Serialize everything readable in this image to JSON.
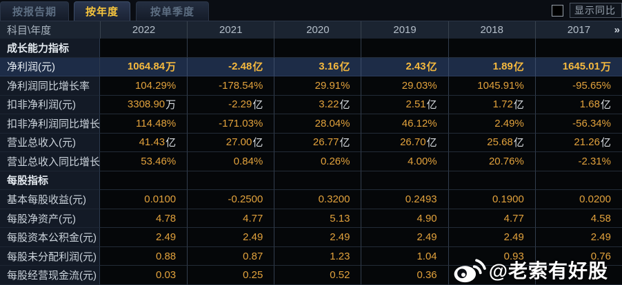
{
  "tabs": [
    {
      "label": "按报告期",
      "active": false
    },
    {
      "label": "按年度",
      "active": true
    },
    {
      "label": "按单季度",
      "active": false
    }
  ],
  "controls": {
    "show_yoy_label": "显示同比",
    "yoy_checkbox_checked": false
  },
  "table": {
    "corner_label": "科目\\年度",
    "more_icon": "»",
    "years": [
      "2022",
      "2021",
      "2020",
      "2019",
      "2018",
      "2017"
    ],
    "rows": [
      {
        "type": "section",
        "label": "成长能力指标",
        "values": [
          "",
          "",
          "",
          "",
          "",
          ""
        ]
      },
      {
        "type": "data",
        "highlight": true,
        "label": "净利润(元)",
        "values": [
          "1064.84万",
          "-2.48亿",
          "3.16亿",
          "2.43亿",
          "1.89亿",
          "1645.01万"
        ]
      },
      {
        "type": "data",
        "label": "净利润同比增长率",
        "values": [
          "104.29%",
          "-178.54%",
          "29.91%",
          "29.03%",
          "1045.91%",
          "-95.65%"
        ]
      },
      {
        "type": "data",
        "label": "扣非净利润(元)",
        "values": [
          "3308.90万",
          "-2.29亿",
          "3.22亿",
          "2.51亿",
          "1.72亿",
          "1.68亿"
        ]
      },
      {
        "type": "data",
        "label": "扣非净利润同比增长率",
        "values": [
          "114.48%",
          "-171.03%",
          "28.04%",
          "46.12%",
          "2.49%",
          "-56.34%"
        ]
      },
      {
        "type": "data",
        "label": "营业总收入(元)",
        "values": [
          "41.43亿",
          "27.00亿",
          "26.77亿",
          "26.70亿",
          "25.68亿",
          "21.26亿"
        ]
      },
      {
        "type": "data",
        "label": "营业总收入同比增长率",
        "values": [
          "53.46%",
          "0.84%",
          "0.26%",
          "4.00%",
          "20.76%",
          "-2.31%"
        ]
      },
      {
        "type": "section",
        "label": "每股指标",
        "values": [
          "",
          "",
          "",
          "",
          "",
          ""
        ]
      },
      {
        "type": "data",
        "label": "基本每股收益(元)",
        "values": [
          "0.0100",
          "-0.2500",
          "0.3200",
          "0.2493",
          "0.1900",
          "0.0200"
        ]
      },
      {
        "type": "data",
        "label": "每股净资产(元)",
        "values": [
          "4.78",
          "4.77",
          "5.13",
          "4.90",
          "4.77",
          "4.58"
        ]
      },
      {
        "type": "data",
        "label": "每股资本公积金(元)",
        "values": [
          "2.49",
          "2.49",
          "2.49",
          "2.49",
          "2.49",
          "2.49"
        ]
      },
      {
        "type": "data",
        "label": "每股未分配利润(元)",
        "values": [
          "0.88",
          "0.87",
          "1.23",
          "1.04",
          "0.93",
          "0.76"
        ]
      },
      {
        "type": "data",
        "label": "每股经营现金流(元)",
        "values": [
          "0.03",
          "0.25",
          "0.52",
          "0.36",
          "",
          ""
        ]
      }
    ]
  },
  "watermark": {
    "handle": "@老索有好股",
    "logo": "weibo-icon"
  },
  "colors": {
    "background": "#0a0d13",
    "accent_gold": "#e2a23c",
    "accent_gold_bright": "#f5b93e",
    "active_tab_text": "#f7c53d",
    "highlight_row_bg": "#1d2c47",
    "header_bg": "#1b2431",
    "watermark_text": "#ffffff"
  }
}
